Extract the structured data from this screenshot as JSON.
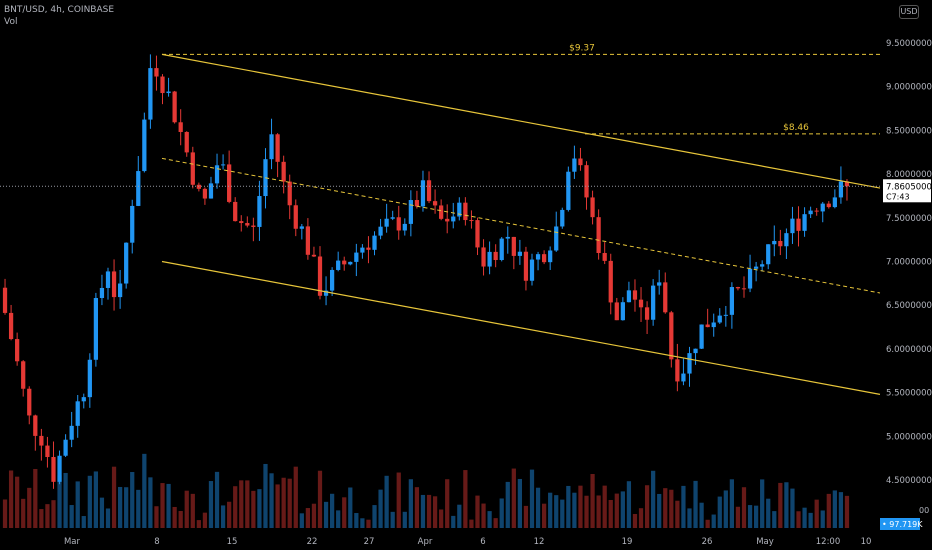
{
  "header": {
    "symbol_line": "BNT/USD, 4h, COINBASE",
    "indicator": "Vol",
    "currency_button": "USD"
  },
  "colors": {
    "background": "#000000",
    "up": "#2196f3",
    "down": "#e53935",
    "channel": "#e7c53a",
    "level": "#e7c53a",
    "axis_text": "#b2b5be",
    "price_label_bg": "#ffffff",
    "volume_label_bg": "#2196f3"
  },
  "chart_data": {
    "type": "candlestick",
    "symbol": "BNT/USD",
    "interval": "4h",
    "exchange": "COINBASE",
    "y_axis": {
      "range": [
        4.2,
        9.9
      ],
      "ticks": [
        9.5,
        9.0,
        8.5,
        8.0,
        7.5,
        7.0,
        6.5,
        6.0,
        5.5,
        5.0,
        4.5
      ],
      "tick_labels": [
        "9.50000000",
        "9.00000000",
        "8.50000000",
        "8.00000000",
        "7.50000000",
        "7.00000000",
        "6.50000000",
        "6.00000000",
        "5.50000000",
        "5.00000000",
        "4.50000000"
      ]
    },
    "x_axis": {
      "labels": [
        "Mar",
        "8",
        "15",
        "22",
        "27",
        "Apr",
        "6",
        "12",
        "19",
        "26",
        "May",
        "12:00",
        "10"
      ]
    },
    "current_price": {
      "value": 7.8605,
      "label": "7.86050000",
      "countdown": "C7:43"
    },
    "volume": {
      "label": "97.719K",
      "partial_label": "00"
    },
    "levels": [
      {
        "value": 9.37,
        "label": "$9.37"
      },
      {
        "value": 8.46,
        "label": "$8.46"
      }
    ],
    "channel": {
      "upper": [
        {
          "bar": 0,
          "price": 9.37
        },
        {
          "bar": 1,
          "price": 7.84
        }
      ],
      "middle": [
        {
          "bar": 0,
          "price": 8.18
        },
        {
          "bar": 1,
          "price": 6.64
        }
      ],
      "lower": [
        {
          "bar": 0,
          "price": 7.0
        },
        {
          "bar": 1,
          "price": 5.48
        }
      ]
    },
    "price_path": [
      [
        0,
        6.7
      ],
      [
        0.02,
        5.9
      ],
      [
        0.035,
        5.2
      ],
      [
        0.05,
        5.0
      ],
      [
        0.065,
        4.55
      ],
      [
        0.08,
        5.05
      ],
      [
        0.1,
        5.55
      ],
      [
        0.115,
        6.5
      ],
      [
        0.13,
        7.0
      ],
      [
        0.14,
        6.4
      ],
      [
        0.155,
        7.6
      ],
      [
        0.168,
        8.3
      ],
      [
        0.18,
        9.35
      ],
      [
        0.2,
        8.9
      ],
      [
        0.22,
        8.3
      ],
      [
        0.24,
        7.6
      ],
      [
        0.26,
        8.2
      ],
      [
        0.28,
        7.5
      ],
      [
        0.3,
        7.35
      ],
      [
        0.32,
        8.5
      ],
      [
        0.34,
        7.7
      ],
      [
        0.36,
        7.3
      ],
      [
        0.38,
        6.65
      ],
      [
        0.4,
        6.9
      ],
      [
        0.43,
        7.2
      ],
      [
        0.46,
        7.4
      ],
      [
        0.48,
        7.5
      ],
      [
        0.5,
        7.8
      ],
      [
        0.52,
        7.45
      ],
      [
        0.55,
        7.6
      ],
      [
        0.57,
        7.0
      ],
      [
        0.6,
        7.3
      ],
      [
        0.62,
        6.9
      ],
      [
        0.645,
        7.15
      ],
      [
        0.66,
        7.45
      ],
      [
        0.675,
        8.35
      ],
      [
        0.69,
        7.85
      ],
      [
        0.71,
        7.1
      ],
      [
        0.73,
        6.3
      ],
      [
        0.745,
        6.75
      ],
      [
        0.76,
        6.25
      ],
      [
        0.78,
        6.9
      ],
      [
        0.795,
        5.75
      ],
      [
        0.81,
        5.8
      ],
      [
        0.825,
        6.2
      ],
      [
        0.84,
        6.35
      ],
      [
        0.86,
        6.55
      ],
      [
        0.88,
        6.7
      ],
      [
        0.9,
        7.0
      ],
      [
        0.92,
        7.2
      ],
      [
        0.94,
        7.45
      ],
      [
        0.96,
        7.65
      ],
      [
        0.98,
        7.75
      ],
      [
        1.0,
        7.8605
      ]
    ],
    "candle_count": 140
  }
}
